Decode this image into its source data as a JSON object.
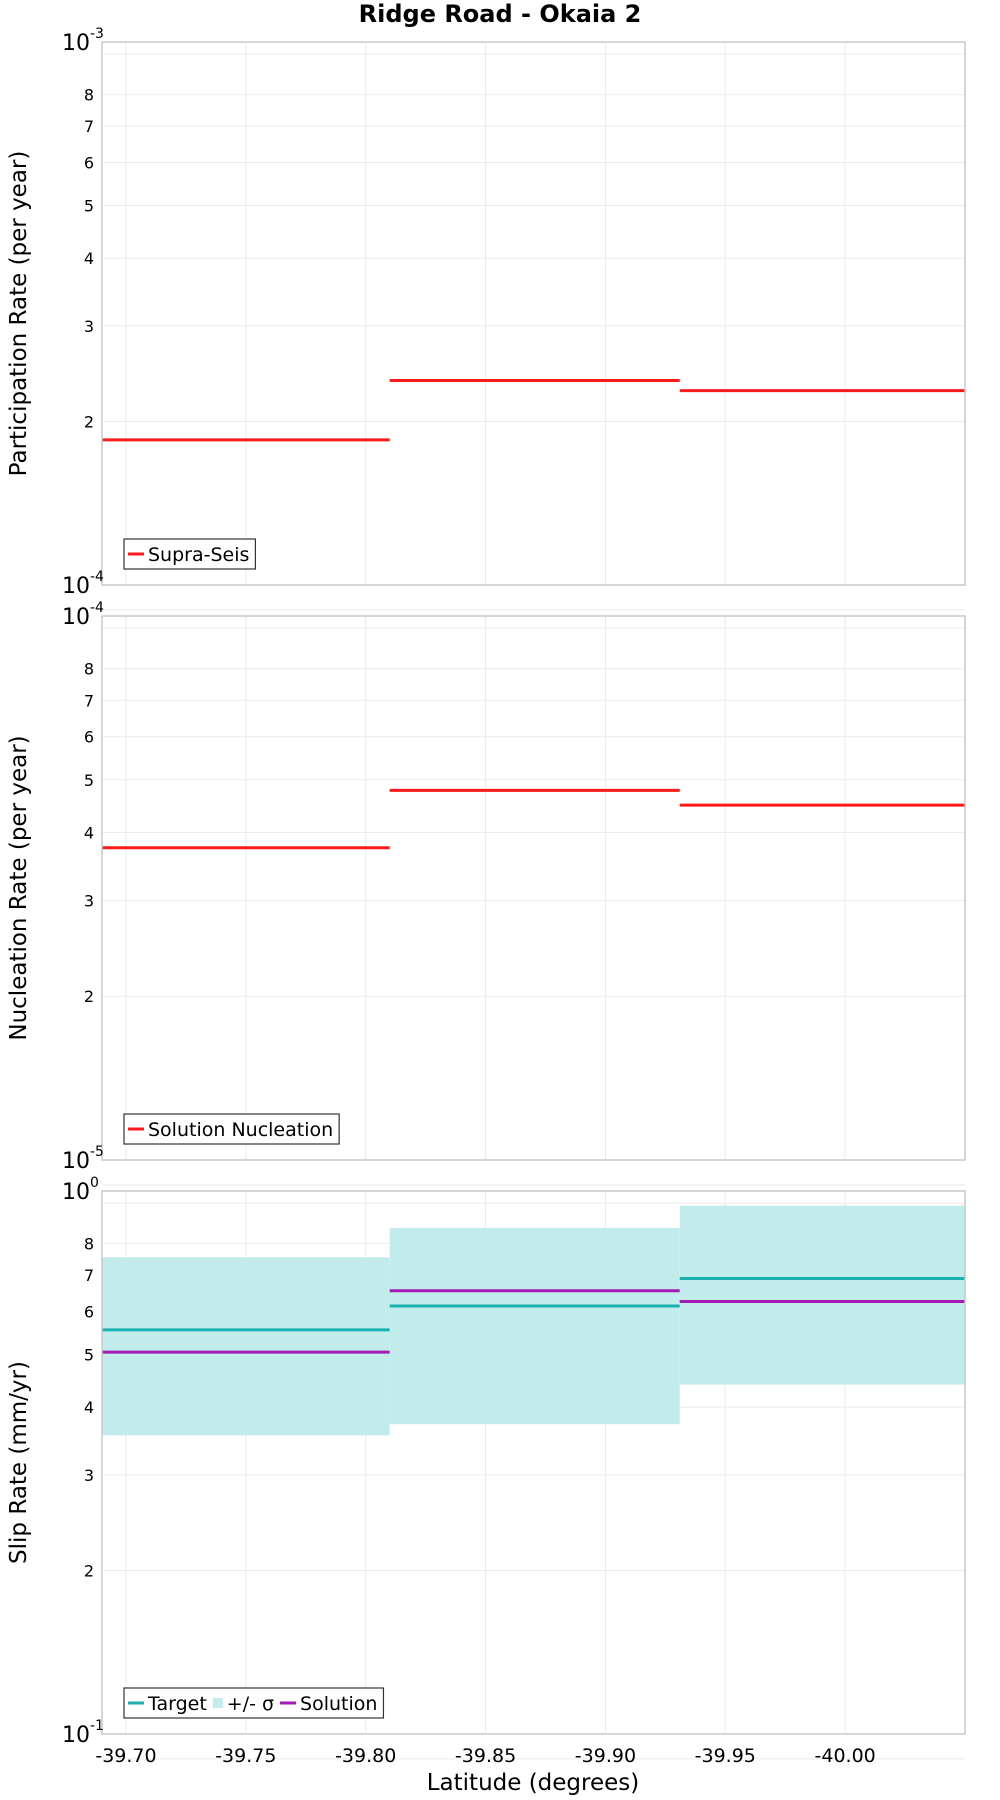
{
  "title": "Ridge Road - Okaia 2",
  "xlabel": "Latitude (degrees)",
  "colors": {
    "supra": "#ff1a1a",
    "target": "#1ab0b0",
    "sigma": "#c2ecec",
    "solution": "#a51ab5"
  },
  "chart_data": [
    {
      "type": "line",
      "title": "Ridge Road - Okaia 2",
      "ylabel": "Participation Rate (per year)",
      "yscale": "log",
      "ylim": [
        0.0001,
        0.001
      ],
      "ytick_minor_labels": [
        "2",
        "3",
        "4",
        "5",
        "6",
        "7",
        "8"
      ],
      "ytick_major": [
        {
          "base": "10",
          "exp": "-4"
        },
        {
          "base": "10",
          "exp": "-3"
        }
      ],
      "xlim": [
        -39.69,
        -40.05
      ],
      "xticks": [
        "-39.70",
        "-39.75",
        "-39.80",
        "-39.85",
        "-39.90",
        "-39.95",
        "-40.00"
      ],
      "grid": true,
      "legend_position": "bottom-left",
      "legend": [
        "Supra-Seis"
      ],
      "series": [
        {
          "name": "Supra-Seis",
          "style": "step",
          "segments": [
            {
              "x0": -39.69,
              "x1": -39.81,
              "y": 0.000185
            },
            {
              "x0": -39.81,
              "x1": -39.931,
              "y": 0.000238
            },
            {
              "x0": -39.931,
              "x1": -40.05,
              "y": 0.000228
            }
          ]
        }
      ]
    },
    {
      "type": "line",
      "ylabel": "Nucleation Rate (per year)",
      "yscale": "log",
      "ylim": [
        1e-05,
        0.0001
      ],
      "ytick_minor_labels": [
        "2",
        "3",
        "4",
        "5",
        "6",
        "7",
        "8"
      ],
      "ytick_major": [
        {
          "base": "10",
          "exp": "-5"
        },
        {
          "base": "10",
          "exp": "-4"
        }
      ],
      "xlim": [
        -39.69,
        -40.05
      ],
      "xticks": [
        "-39.70",
        "-39.75",
        "-39.80",
        "-39.85",
        "-39.90",
        "-39.95",
        "-40.00"
      ],
      "grid": true,
      "legend_position": "bottom-left",
      "legend": [
        "Solution Nucleation"
      ],
      "series": [
        {
          "name": "Solution Nucleation",
          "style": "step",
          "segments": [
            {
              "x0": -39.69,
              "x1": -39.81,
              "y": 3.75e-05
            },
            {
              "x0": -39.81,
              "x1": -39.931,
              "y": 4.78e-05
            },
            {
              "x0": -39.931,
              "x1": -40.05,
              "y": 4.49e-05
            }
          ]
        }
      ]
    },
    {
      "type": "line",
      "ylabel": "Slip Rate (mm/yr)",
      "yscale": "log",
      "ylim": [
        0.1,
        1.0
      ],
      "ytick_minor_labels": [
        "2",
        "3",
        "4",
        "5",
        "6",
        "7",
        "8"
      ],
      "ytick_major": [
        {
          "base": "10",
          "exp": "-1"
        },
        {
          "base": "10",
          "exp": "0"
        }
      ],
      "xlim": [
        -39.69,
        -40.05
      ],
      "xticks": [
        "-39.70",
        "-39.75",
        "-39.80",
        "-39.85",
        "-39.90",
        "-39.95",
        "-40.00"
      ],
      "grid": true,
      "legend_position": "bottom-left",
      "legend": [
        "Target",
        "+/- σ",
        "Solution"
      ],
      "series": [
        {
          "name": "+/- σ",
          "style": "band",
          "segments": [
            {
              "x0": -39.69,
              "x1": -39.81,
              "low": 0.355,
              "high": 0.755
            },
            {
              "x0": -39.81,
              "x1": -39.931,
              "low": 0.372,
              "high": 0.855
            },
            {
              "x0": -39.931,
              "x1": -40.05,
              "low": 0.44,
              "high": 0.94
            }
          ]
        },
        {
          "name": "Target",
          "style": "step",
          "segments": [
            {
              "x0": -39.69,
              "x1": -39.81,
              "y": 0.555
            },
            {
              "x0": -39.81,
              "x1": -39.931,
              "y": 0.614
            },
            {
              "x0": -39.931,
              "x1": -40.05,
              "y": 0.69
            }
          ]
        },
        {
          "name": "Solution",
          "style": "step",
          "segments": [
            {
              "x0": -39.69,
              "x1": -39.81,
              "y": 0.505
            },
            {
              "x0": -39.81,
              "x1": -39.931,
              "y": 0.655
            },
            {
              "x0": -39.931,
              "x1": -40.05,
              "y": 0.626
            }
          ]
        }
      ]
    }
  ]
}
